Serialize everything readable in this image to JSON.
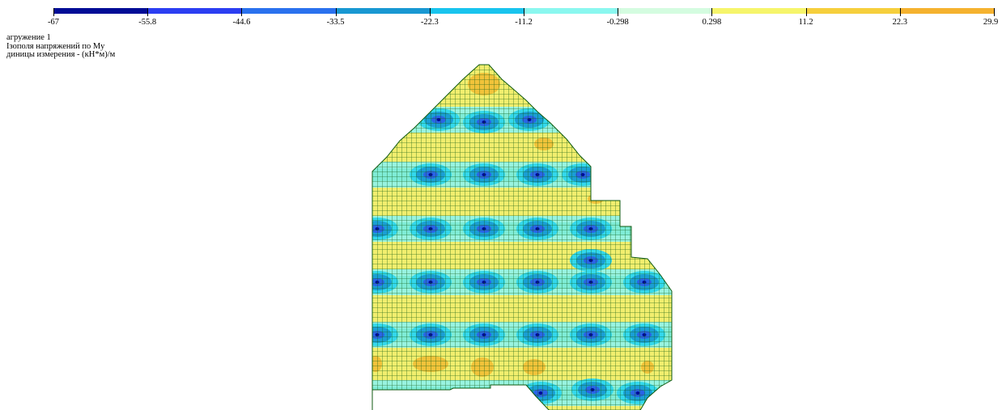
{
  "scale": {
    "labels": [
      "-67",
      "-55.8",
      "-44.6",
      "-33.5",
      "-22.3",
      "-11.2",
      "-0.298",
      "0.298",
      "11.2",
      "22.3",
      "29.9"
    ],
    "colors": [
      "#000c96",
      "#2b3ef2",
      "#2a71ee",
      "#1898d2",
      "#18c4ee",
      "#8bf7ef",
      "#d4fce0",
      "#f6f56b",
      "#f6cf3c",
      "#f5b22f"
    ]
  },
  "info": {
    "line1": "агружение  1",
    "line2": "Iзополя напряжений по My",
    "line3": "диницы измерения - (кН*м)/м"
  }
}
